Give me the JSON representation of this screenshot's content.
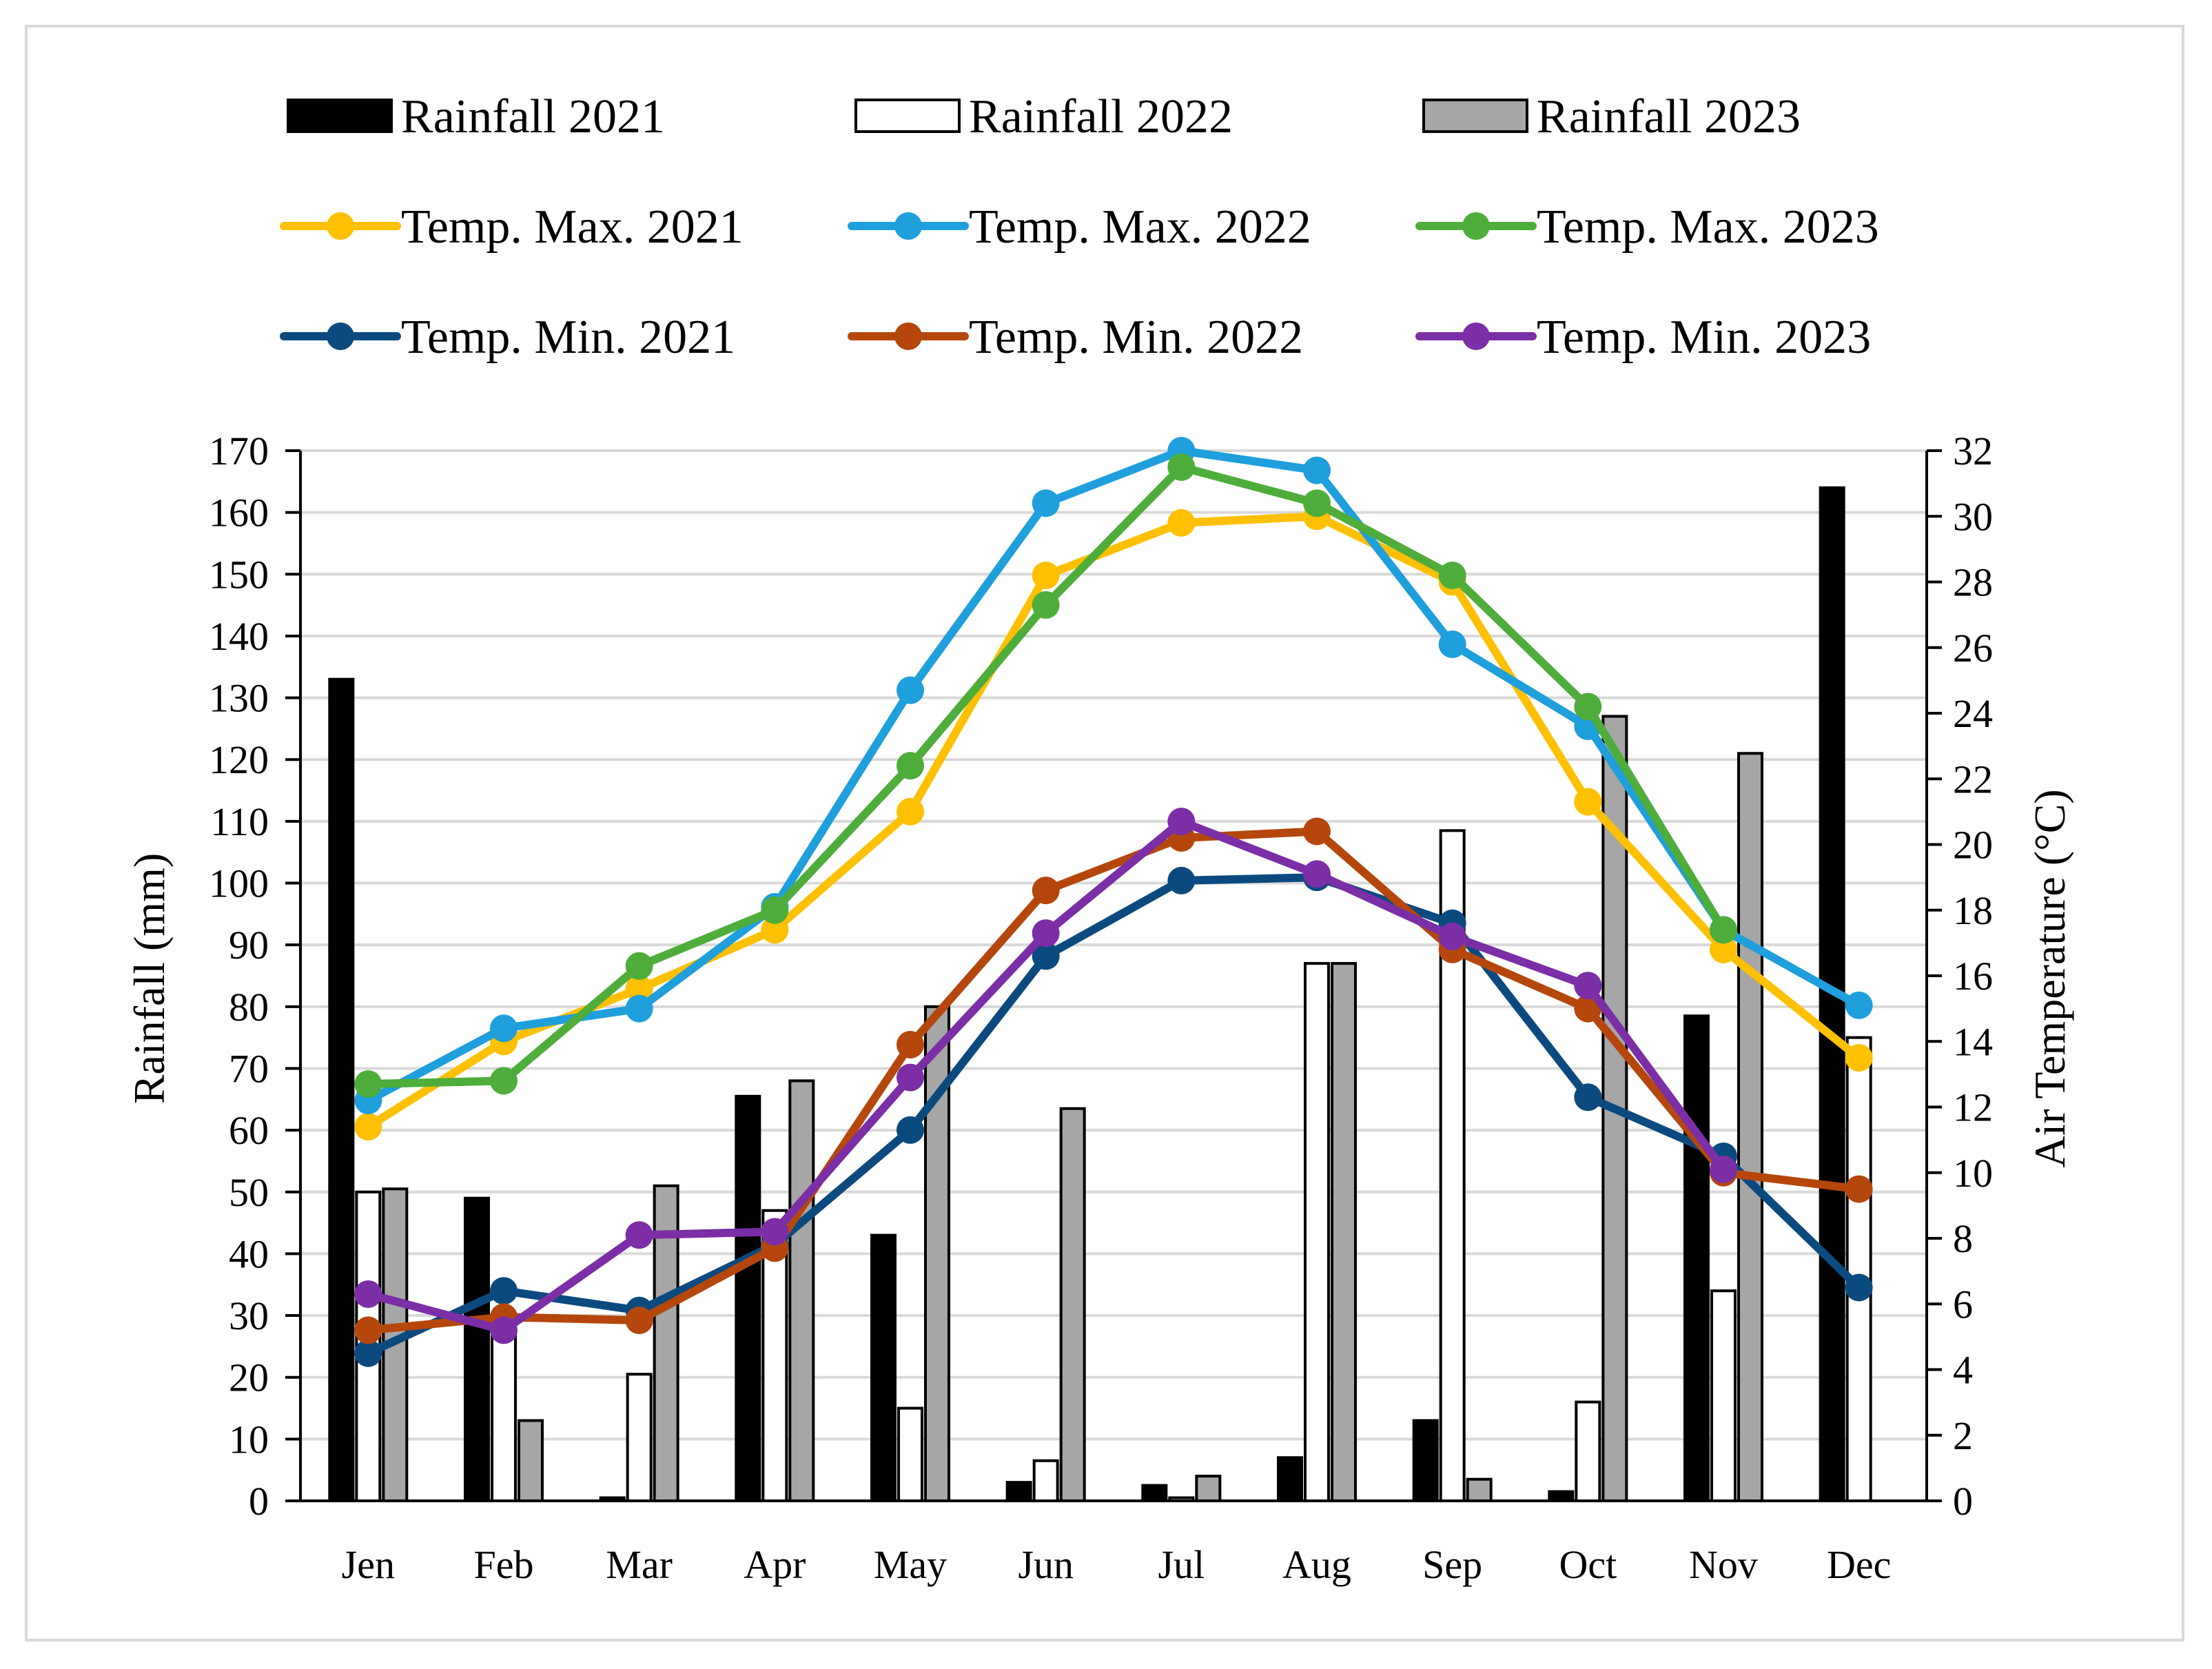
{
  "chart_data": {
    "type": "bar+line",
    "categories": [
      "Jen",
      "Feb",
      "Mar",
      "Apr",
      "May",
      "Jun",
      "Jul",
      "Aug",
      "Sep",
      "Oct",
      "Nov",
      "Dec"
    ],
    "ylabel": "Rainfall (mm)",
    "y2label": "Air Temperature (°C)",
    "ylim": [
      0,
      170
    ],
    "y2lim": [
      0,
      32
    ],
    "yticks": [
      0,
      10,
      20,
      30,
      40,
      50,
      60,
      70,
      80,
      90,
      100,
      110,
      120,
      130,
      140,
      150,
      160,
      170
    ],
    "y2ticks": [
      0,
      2,
      4,
      6,
      8,
      10,
      12,
      14,
      16,
      18,
      20,
      22,
      24,
      26,
      28,
      30,
      32
    ],
    "grid": true,
    "legend_position": "top",
    "bar_series": [
      {
        "name": "Rainfall 2021",
        "color": "#000000",
        "values": [
          133,
          49,
          0.5,
          65.5,
          43,
          3,
          2.5,
          7,
          13,
          1.5,
          78.5,
          164
        ]
      },
      {
        "name": "Rainfall 2022",
        "color": "#ffffff",
        "values": [
          50,
          30,
          20.5,
          47,
          15,
          6.5,
          0.5,
          87,
          108.5,
          16,
          34,
          75
        ]
      },
      {
        "name": "Rainfall 2023",
        "color": "#a6a6a6",
        "values": [
          50.5,
          13,
          51,
          68,
          80,
          63.5,
          4,
          87,
          3.5,
          127,
          121,
          null
        ]
      }
    ],
    "line_series": [
      {
        "name": "Temp. Max. 2021",
        "color": "#ffc000",
        "values": [
          11.4,
          14,
          15.6,
          17.4,
          21,
          28.2,
          29.8,
          30,
          28,
          21.3,
          16.8,
          13.5
        ]
      },
      {
        "name": "Temp. Max. 2022",
        "color": "#1f9fdc",
        "values": [
          12.2,
          14.4,
          15,
          18.1,
          24.7,
          30.4,
          32,
          31.4,
          26.1,
          23.6,
          17.4,
          15.1
        ]
      },
      {
        "name": "Temp. Max. 2023",
        "color": "#4ead3b",
        "values": [
          12.7,
          12.8,
          16.3,
          18,
          22.4,
          27.3,
          31.5,
          30.4,
          28.2,
          24.2,
          17.4,
          null
        ]
      },
      {
        "name": "Temp. Min. 2021",
        "color": "#0b4a7f",
        "values": [
          4.5,
          6.4,
          5.8,
          7.8,
          11.3,
          16.6,
          18.9,
          19,
          17.6,
          12.3,
          10.5,
          6.5
        ]
      },
      {
        "name": "Temp. Min. 2022",
        "color": "#b5470c",
        "values": [
          5.2,
          5.6,
          5.5,
          7.7,
          13.9,
          18.6,
          20.2,
          20.4,
          16.8,
          15,
          10,
          9.5
        ]
      },
      {
        "name": "Temp. Min. 2023",
        "color": "#7b2ea6",
        "values": [
          6.3,
          5.2,
          8.1,
          8.2,
          12.9,
          17.3,
          20.7,
          19.1,
          17.2,
          15.7,
          10.1,
          null
        ]
      }
    ]
  }
}
